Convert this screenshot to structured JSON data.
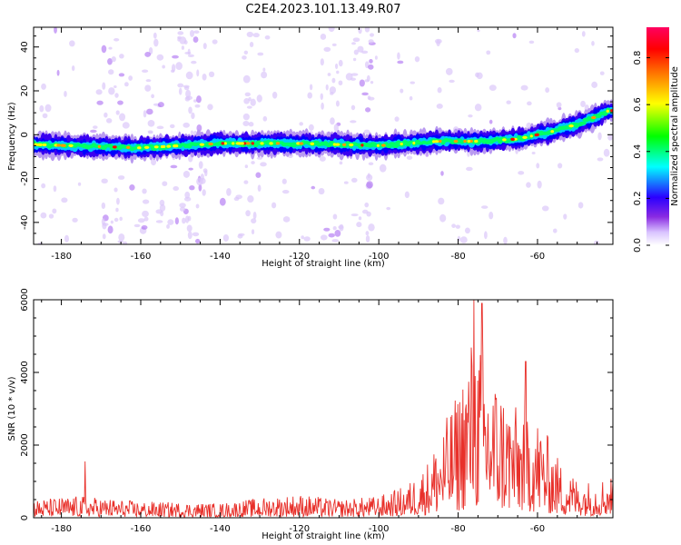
{
  "title": "C2E4.2023.101.13.49.R07",
  "colors": {
    "snr_line": "#e8302a",
    "background": "#ffffff",
    "axis": "#000000"
  },
  "chart_data": [
    {
      "type": "heatmap",
      "xlabel": "Height of straight line (km)",
      "ylabel": "Frequency (Hz)",
      "xlim": [
        -187,
        -41
      ],
      "ylim": [
        -50,
        49
      ],
      "xticks": [
        -180,
        -160,
        -140,
        -120,
        -100,
        -80,
        -60
      ],
      "yticks": [
        -40,
        -20,
        0,
        20,
        40
      ],
      "colorbar": {
        "label": "Normalized spectral amplitude",
        "range": [
          0.0,
          0.93
        ],
        "ticks": [
          0.0,
          0.2,
          0.4,
          0.6,
          0.8
        ],
        "colormap": "hsv-rainbow"
      },
      "ridge_center": [
        {
          "x": -187,
          "y": -4.5
        },
        {
          "x": -160,
          "y": -6
        },
        {
          "x": -140,
          "y": -4
        },
        {
          "x": -120,
          "y": -4
        },
        {
          "x": -100,
          "y": -5
        },
        {
          "x": -85,
          "y": -3
        },
        {
          "x": -75,
          "y": -3
        },
        {
          "x": -65,
          "y": -2
        },
        {
          "x": -55,
          "y": 2
        },
        {
          "x": -48,
          "y": 6
        },
        {
          "x": -42,
          "y": 11
        }
      ],
      "scatter_columns": [
        -167,
        -157,
        -150,
        -146,
        -131,
        -112,
        -104
      ]
    },
    {
      "type": "line",
      "xlabel": "Height of straight line (km)",
      "ylabel": "SNR (10 * v/v)",
      "xlim": [
        -187,
        -41
      ],
      "ylim": [
        0,
        6000
      ],
      "xticks": [
        -180,
        -160,
        -140,
        -120,
        -100,
        -80,
        -60
      ],
      "yticks": [
        0,
        2000,
        4000,
        6000
      ],
      "envelope": [
        {
          "x": -187,
          "y": 500
        },
        {
          "x": -175,
          "y": 600
        },
        {
          "x": -160,
          "y": 450
        },
        {
          "x": -140,
          "y": 400
        },
        {
          "x": -130,
          "y": 550
        },
        {
          "x": -120,
          "y": 650
        },
        {
          "x": -110,
          "y": 500
        },
        {
          "x": -100,
          "y": 600
        },
        {
          "x": -93,
          "y": 900
        },
        {
          "x": -88,
          "y": 1500
        },
        {
          "x": -84,
          "y": 2500
        },
        {
          "x": -80,
          "y": 3500
        },
        {
          "x": -77,
          "y": 5000
        },
        {
          "x": -75,
          "y": 5000
        },
        {
          "x": -72,
          "y": 4200
        },
        {
          "x": -68,
          "y": 3500
        },
        {
          "x": -65,
          "y": 3000
        },
        {
          "x": -62,
          "y": 3200
        },
        {
          "x": -58,
          "y": 2400
        },
        {
          "x": -54,
          "y": 1500
        },
        {
          "x": -50,
          "y": 1100
        },
        {
          "x": -46,
          "y": 1000
        },
        {
          "x": -42,
          "y": 1200
        }
      ],
      "peaks": [
        {
          "x": -174,
          "y": 1550
        },
        {
          "x": -76,
          "y": 6000
        },
        {
          "x": -74,
          "y": 5900
        },
        {
          "x": -63,
          "y": 4300
        }
      ]
    }
  ]
}
